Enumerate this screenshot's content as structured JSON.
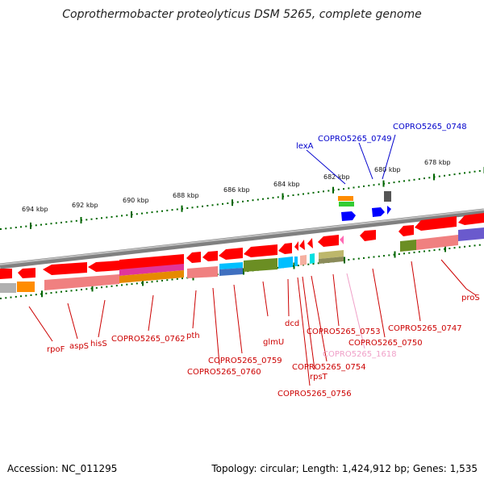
{
  "title": "Coprothermobacter proteolyticus DSM 5265, complete genome",
  "footer": {
    "accession": "Accession: NC_011295",
    "stats": "Topology: circular; Length: 1,424,912 bp; Genes: 1,535"
  },
  "colors": {
    "gene_red": "#ff0000",
    "gene_blue": "#0000ff",
    "label_red": "#cc0000",
    "label_blue": "#0000cc",
    "label_pink": "#f0a0c8",
    "ruler_green": "#006600",
    "backbone_gray": "#808080"
  },
  "ruler_ticks": [
    "694 kbp",
    "692 kbp",
    "690 kbp",
    "688 kbp",
    "686 kbp",
    "684 kbp",
    "682 kbp",
    "680 kbp",
    "678 kbp"
  ],
  "labels_top": [
    {
      "name": "COPRO5265_0748",
      "color": "blue"
    },
    {
      "name": "COPRO5265_0749",
      "color": "blue"
    },
    {
      "name": "lexA",
      "color": "blue"
    }
  ],
  "labels_bottom": [
    {
      "name": "proS",
      "color": "red"
    },
    {
      "name": "COPRO5265_0747",
      "color": "red"
    },
    {
      "name": "COPRO5265_0750",
      "color": "red"
    },
    {
      "name": "COPRO5265_1618",
      "color": "pink"
    },
    {
      "name": "COPRO5265_0753",
      "color": "red"
    },
    {
      "name": "COPRO5265_0754",
      "color": "red"
    },
    {
      "name": "rpsT",
      "color": "red"
    },
    {
      "name": "COPRO5265_0756",
      "color": "red"
    },
    {
      "name": "dcd",
      "color": "red"
    },
    {
      "name": "glmU",
      "color": "red"
    },
    {
      "name": "COPRO5265_0759",
      "color": "red"
    },
    {
      "name": "COPRO5265_0760",
      "color": "red"
    },
    {
      "name": "pth",
      "color": "red"
    },
    {
      "name": "COPRO5265_0762",
      "color": "red"
    },
    {
      "name": "hisS",
      "color": "red"
    },
    {
      "name": "aspS",
      "color": "red"
    },
    {
      "name": "rpoF",
      "color": "red"
    }
  ]
}
